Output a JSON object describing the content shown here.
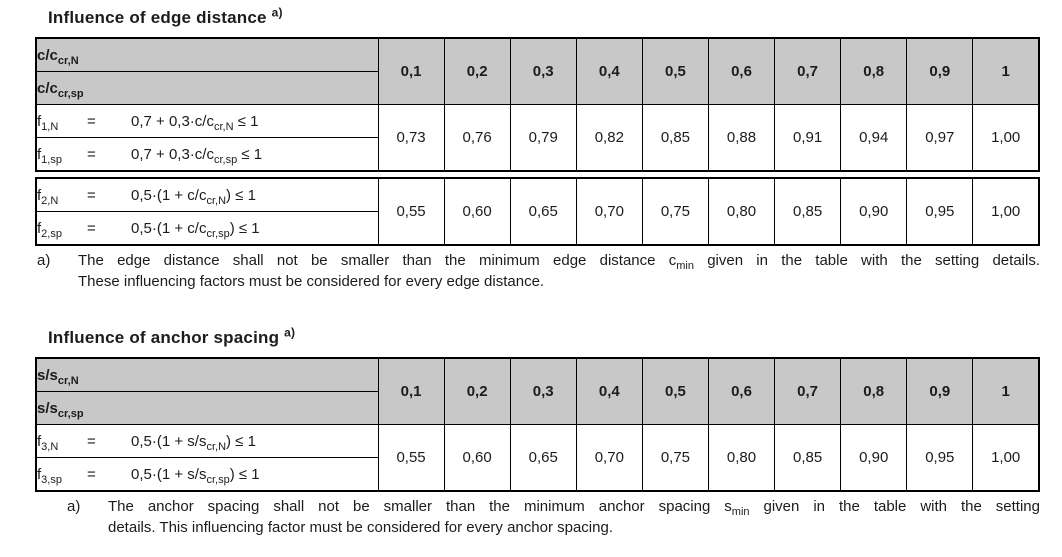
{
  "colors": {
    "header_gray": "#c8c8c8",
    "border": "#000000",
    "text": "#1c1c1c"
  },
  "table1": {
    "title": [
      {
        "t": "Influence of edge distance "
      },
      {
        "sup": "a)"
      }
    ],
    "header_rows": [
      [
        {
          "t": "c/c"
        },
        {
          "sub": "cr,N"
        }
      ],
      [
        {
          "t": "c/c"
        },
        {
          "sub": "cr,sp"
        }
      ]
    ],
    "header_values": [
      "0,1",
      "0,2",
      "0,3",
      "0,4",
      "0,5",
      "0,6",
      "0,7",
      "0,8",
      "0,9",
      "1"
    ],
    "f1": {
      "rows": [
        {
          "sym": [
            {
              "t": "f"
            },
            {
              "sub": "1,N"
            }
          ],
          "eq": "=",
          "expr": [
            {
              "t": "0,7 + 0,3·c/c"
            },
            {
              "sub": "cr,N"
            },
            {
              "t": " ≤ 1"
            }
          ]
        },
        {
          "sym": [
            {
              "t": "f"
            },
            {
              "sub": "1,sp"
            }
          ],
          "eq": "=",
          "expr": [
            {
              "t": "0,7 + 0,3·c/c"
            },
            {
              "sub": "cr,sp"
            },
            {
              "t": " ≤ 1"
            }
          ]
        }
      ],
      "values": [
        "0,73",
        "0,76",
        "0,79",
        "0,82",
        "0,85",
        "0,88",
        "0,91",
        "0,94",
        "0,97",
        "1,00"
      ]
    },
    "f2": {
      "rows": [
        {
          "sym": [
            {
              "t": "f"
            },
            {
              "sub": "2,N"
            }
          ],
          "eq": "=",
          "expr": [
            {
              "t": "0,5·(1 + c/c"
            },
            {
              "sub": "cr,N"
            },
            {
              "t": ") ≤ 1"
            }
          ]
        },
        {
          "sym": [
            {
              "t": "f"
            },
            {
              "sub": "2,sp"
            }
          ],
          "eq": "=",
          "expr": [
            {
              "t": "0,5·(1 + c/c"
            },
            {
              "sub": "cr,sp"
            },
            {
              "t": ") ≤ 1"
            }
          ]
        }
      ],
      "values": [
        "0,55",
        "0,60",
        "0,65",
        "0,70",
        "0,75",
        "0,80",
        "0,85",
        "0,90",
        "0,95",
        "1,00"
      ]
    },
    "footnote": {
      "marker": "a)",
      "lines": [
        {
          "segs": [
            {
              "t": "The edge distance shall not be smaller than the minimum edge distance c"
            },
            {
              "sub": "min"
            },
            {
              "t": " given in the table with the setting details."
            }
          ]
        },
        {
          "segs": [
            {
              "t": "These influencing factors must be considered for every edge distance."
            }
          ]
        }
      ]
    }
  },
  "table2": {
    "title": [
      {
        "t": "Influence of anchor spacing "
      },
      {
        "sup": "a)"
      }
    ],
    "header_rows": [
      [
        {
          "t": "s/s"
        },
        {
          "sub": "cr,N"
        }
      ],
      [
        {
          "t": "s/s"
        },
        {
          "sub": "cr,sp"
        }
      ]
    ],
    "header_values": [
      "0,1",
      "0,2",
      "0,3",
      "0,4",
      "0,5",
      "0,6",
      "0,7",
      "0,8",
      "0,9",
      "1"
    ],
    "f3": {
      "rows": [
        {
          "sym": [
            {
              "t": "f"
            },
            {
              "sub": "3,N"
            }
          ],
          "eq": "=",
          "expr": [
            {
              "t": "0,5·(1 + s/s"
            },
            {
              "sub": "cr,N"
            },
            {
              "t": ") ≤ 1"
            }
          ]
        },
        {
          "sym": [
            {
              "t": "f"
            },
            {
              "sub": "3,sp"
            }
          ],
          "eq": "=",
          "expr": [
            {
              "t": "0,5·(1 + s/s"
            },
            {
              "sub": "cr,sp"
            },
            {
              "t": ") ≤ 1"
            }
          ]
        }
      ],
      "values": [
        "0,55",
        "0,60",
        "0,65",
        "0,70",
        "0,75",
        "0,80",
        "0,85",
        "0,90",
        "0,95",
        "1,00"
      ]
    },
    "footnote": {
      "marker": "a)",
      "lines": [
        {
          "segs": [
            {
              "t": "The anchor spacing shall not be smaller than the minimum anchor spacing s"
            },
            {
              "sub": "min"
            },
            {
              "t": " given in the table with the setting"
            }
          ]
        },
        {
          "segs": [
            {
              "t": "details. This influencing factor must be considered for every anchor spacing."
            }
          ]
        }
      ]
    }
  }
}
